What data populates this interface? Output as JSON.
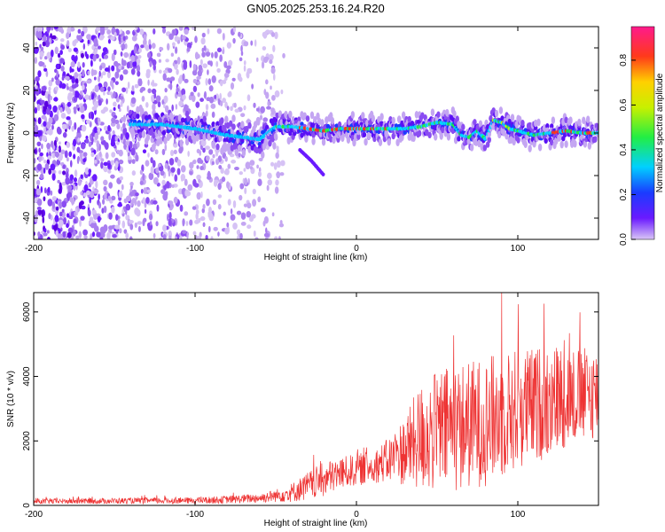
{
  "title": "GN05.2025.253.16.24.R20",
  "chart_data": [
    {
      "type": "heatmap",
      "xlabel": "Height of straight line (km)",
      "ylabel": "Frequency (Hz)",
      "xlim": [
        -200,
        150
      ],
      "ylim": [
        -50,
        50
      ],
      "xticks": [
        -200,
        -100,
        0,
        100
      ],
      "yticks": [
        -40,
        -20,
        0,
        20,
        40
      ],
      "grid": false,
      "colorbar": {
        "label": "Normalized spectral amplitude",
        "range": [
          0.0,
          0.95
        ],
        "ticks": [
          0.0,
          0.2,
          0.4,
          0.6,
          0.8
        ]
      },
      "ridge": {
        "description": "dominant frequency track",
        "x": [
          -140,
          -120,
          -100,
          -80,
          -70,
          -60,
          -50,
          -40,
          -30,
          -20,
          -10,
          0,
          10,
          20,
          30,
          40,
          50,
          60,
          65,
          70,
          75,
          80,
          85,
          90,
          95,
          100,
          110,
          120,
          130,
          140,
          150
        ],
        "y": [
          4,
          4,
          2,
          -1,
          -2,
          -3,
          3,
          3,
          2,
          1,
          2,
          2,
          2,
          2,
          2,
          3,
          5,
          4,
          -1,
          -2,
          1,
          -3,
          6,
          5,
          2,
          1,
          -1,
          0,
          1,
          0,
          0
        ]
      },
      "branch": {
        "x": [
          -35,
          -28,
          -20
        ],
        "y": [
          -8,
          -13,
          -20
        ]
      }
    },
    {
      "type": "line",
      "xlabel": "Height of straight line (km)",
      "ylabel": "SNR (10 * v/v)",
      "xlim": [
        -200,
        150
      ],
      "ylim": [
        0,
        6600
      ],
      "xticks": [
        -200,
        -100,
        0,
        100
      ],
      "yticks": [
        0,
        2000,
        4000,
        6000
      ],
      "grid": false,
      "series": [
        {
          "name": "SNR",
          "color": "#ee3333",
          "envelope_x": [
            -200,
            -150,
            -100,
            -80,
            -60,
            -50,
            -40,
            -30,
            -20,
            -10,
            0,
            10,
            20,
            30,
            40,
            50,
            60,
            70,
            80,
            90,
            100,
            110,
            120,
            130,
            140,
            150
          ],
          "envelope_mean": [
            120,
            140,
            150,
            180,
            230,
            300,
            400,
            600,
            800,
            1000,
            1100,
            1200,
            1400,
            1700,
            2100,
            2300,
            2400,
            2500,
            2600,
            2800,
            3000,
            3100,
            3300,
            3400,
            3400,
            3500
          ],
          "envelope_spread": [
            80,
            90,
            100,
            120,
            150,
            200,
            300,
            450,
            550,
            500,
            500,
            500,
            700,
            1100,
            1700,
            1900,
            2000,
            2000,
            2000,
            2000,
            1900,
            1800,
            1800,
            1600,
            1500,
            1400
          ],
          "peak": {
            "x": 90,
            "y": 6600
          }
        }
      ]
    }
  ]
}
